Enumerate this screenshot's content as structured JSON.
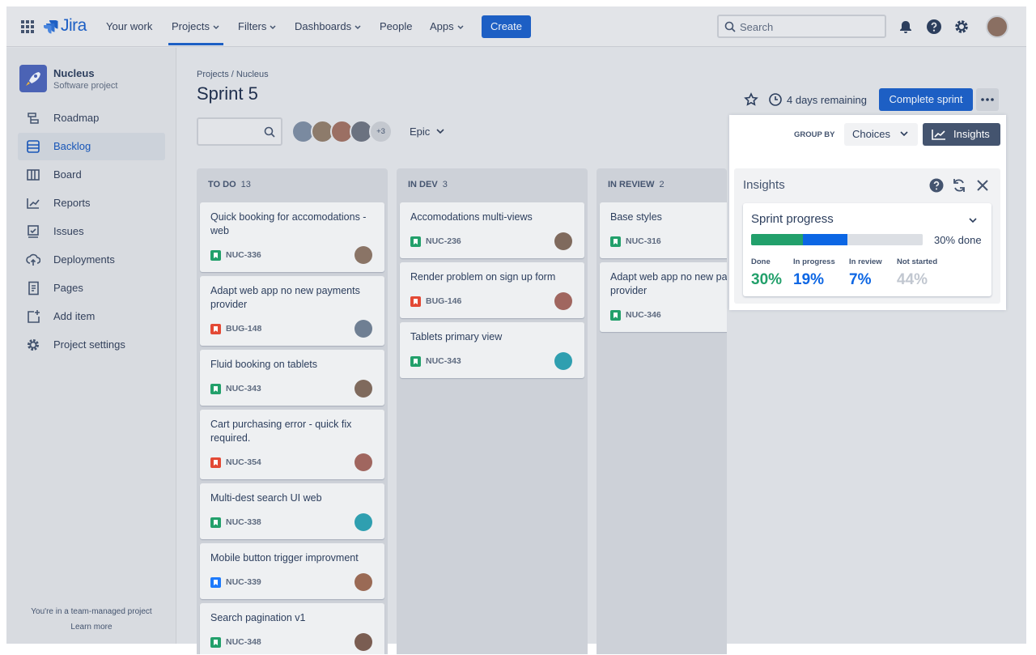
{
  "nav": {
    "logo": "Jira",
    "items": [
      "Your work",
      "Projects",
      "Filters",
      "Dashboards",
      "People",
      "Apps"
    ],
    "create": "Create",
    "search": "Search"
  },
  "sidebar": {
    "project": "Nucleus",
    "subtitle": "Software project",
    "items": [
      "Roadmap",
      "Backlog",
      "Board",
      "Reports",
      "Issues",
      "Deployments",
      "Pages",
      "Add item",
      "Project settings"
    ],
    "footer": "You're in a team-managed project",
    "footer_link": "Learn more"
  },
  "header": {
    "breadcrumb": "Projects / Nucleus",
    "title": "Sprint 5",
    "remaining": "4 days remaining",
    "complete": "Complete sprint",
    "more_avatars": "+3",
    "epic": "Epic",
    "group_by": "GROUP BY",
    "choices": "Choices",
    "insights": "Insights"
  },
  "columns": [
    {
      "name": "TO DO",
      "count": 13,
      "cards": [
        {
          "title": "Quick booking for accomodations - web",
          "key": "NUC-336",
          "icon_color": "#22a06b"
        },
        {
          "title": "Adapt web app no new payments provider",
          "key": "BUG-148",
          "icon_color": "#e34935"
        },
        {
          "title": "Fluid booking on tablets",
          "key": "NUC-343",
          "icon_color": "#22a06b"
        },
        {
          "title": "Cart purchasing error - quick fix required.",
          "key": "NUC-354",
          "icon_color": "#e34935"
        },
        {
          "title": "Multi-dest search UI web",
          "key": "NUC-338",
          "icon_color": "#22a06b"
        },
        {
          "title": "Mobile button trigger improvment",
          "key": "NUC-339",
          "icon_color": "#1d7afc"
        },
        {
          "title": "Search pagination v1",
          "key": "NUC-348",
          "icon_color": "#22a06b"
        }
      ]
    },
    {
      "name": "IN DEV",
      "count": 3,
      "cards": [
        {
          "title": "Accomodations multi-views",
          "key": "NUC-236",
          "icon_color": "#22a06b"
        },
        {
          "title": "Render problem on sign up form",
          "key": "BUG-146",
          "icon_color": "#e34935"
        },
        {
          "title": "Tablets primary view",
          "key": "NUC-343",
          "icon_color": "#22a06b"
        }
      ]
    },
    {
      "name": "IN REVIEW",
      "count": 2,
      "cards": [
        {
          "title": "Base styles",
          "key": "NUC-316",
          "icon_color": "#22a06b"
        },
        {
          "title": "Adapt web app no new payments provider",
          "key": "NUC-346",
          "icon_color": "#22a06b"
        }
      ]
    }
  ],
  "insights": {
    "title": "Insights",
    "card_title": "Sprint progress",
    "done_label": "30% done",
    "segments": [
      {
        "name": "Done",
        "value": 30,
        "label": "30%",
        "color": "#22a06b"
      },
      {
        "name": "In progress",
        "value": 19,
        "label": "19%",
        "color": "#0c66e4"
      },
      {
        "name": "In review",
        "value": 7,
        "label": "7%",
        "color": "#0c66e4"
      },
      {
        "name": "Not started",
        "value": 44,
        "label": "44%",
        "color": "#dcdfe4"
      }
    ]
  }
}
